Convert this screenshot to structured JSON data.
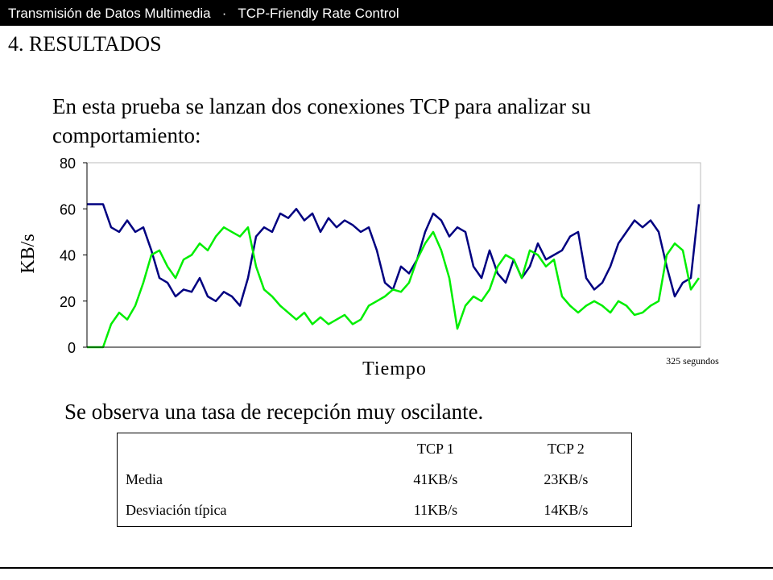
{
  "header": "Transmisión de Datos Multimedia   ·   TCP-Friendly Rate Control",
  "title": "4. RESULTADOS",
  "intro": "En esta prueba se lanzan dos conexiones TCP para analizar su comportamiento:",
  "observation": "Se observa una tasa de recepción muy oscilante.",
  "chart_data": {
    "type": "line",
    "ylabel": "KB/s",
    "xlabel": "Tiempo",
    "annotation": "325 segundos",
    "ylim": [
      0,
      80
    ],
    "yticks": [
      0,
      20,
      40,
      60,
      80
    ],
    "series": [
      {
        "color": "#000080",
        "values": [
          62,
          62,
          62,
          52,
          50,
          55,
          50,
          52,
          42,
          30,
          28,
          22,
          25,
          24,
          30,
          22,
          20,
          24,
          22,
          18,
          30,
          48,
          52,
          50,
          58,
          56,
          60,
          55,
          58,
          50,
          56,
          52,
          55,
          53,
          50,
          52,
          42,
          28,
          25,
          35,
          32,
          38,
          50,
          58,
          55,
          48,
          52,
          50,
          35,
          30,
          42,
          32,
          28,
          38,
          30,
          35,
          45,
          38,
          40,
          42,
          48,
          50,
          30,
          25,
          28,
          35,
          45,
          50,
          55,
          52,
          55,
          50,
          35,
          22,
          28,
          30,
          62
        ]
      },
      {
        "color": "#00ee00",
        "values": [
          0,
          0,
          0,
          10,
          15,
          12,
          18,
          28,
          40,
          42,
          35,
          30,
          38,
          40,
          45,
          42,
          48,
          52,
          50,
          48,
          52,
          35,
          25,
          22,
          18,
          15,
          12,
          15,
          10,
          13,
          10,
          12,
          14,
          10,
          12,
          18,
          20,
          22,
          25,
          24,
          28,
          38,
          45,
          50,
          42,
          30,
          8,
          18,
          22,
          20,
          25,
          35,
          40,
          38,
          30,
          42,
          40,
          35,
          38,
          22,
          18,
          15,
          18,
          20,
          18,
          15,
          20,
          18,
          14,
          15,
          18,
          20,
          40,
          45,
          42,
          25,
          30
        ]
      }
    ]
  },
  "table": {
    "columns": [
      "TCP 1",
      "TCP 2"
    ],
    "rows": [
      [
        "Media",
        "41KB/s",
        "23KB/s"
      ],
      [
        "Desviación típica",
        "11KB/s",
        "14KB/s"
      ]
    ]
  }
}
